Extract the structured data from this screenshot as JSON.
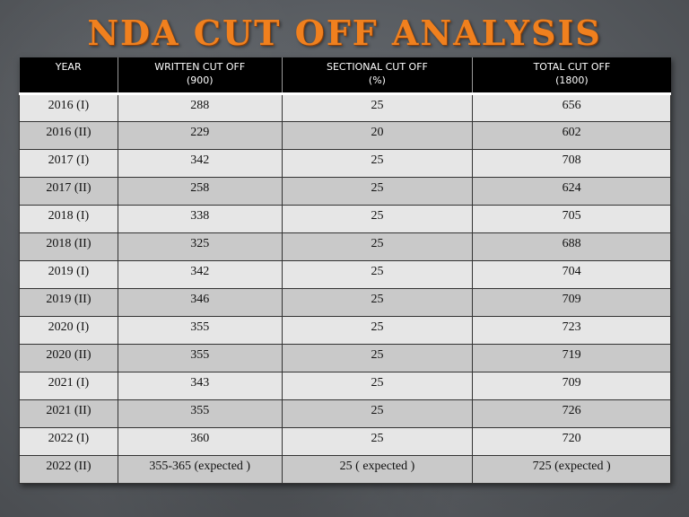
{
  "title": "NDA CUT OFF ANALYSIS",
  "colors": {
    "title": "#f0801e",
    "header_bg": "#000000",
    "row_light": "#e6e6e6",
    "row_dark": "#c9c9c9"
  },
  "table": {
    "headers": [
      {
        "label": "YEAR",
        "sub": ""
      },
      {
        "label": "WRITTEN CUT OFF",
        "sub": "(900)"
      },
      {
        "label": "SECTIONAL CUT OFF",
        "sub": "(%)"
      },
      {
        "label": "TOTAL CUT OFF",
        "sub": "(1800)"
      }
    ],
    "rows": [
      [
        "2016 (I)",
        "288",
        "25",
        "656"
      ],
      [
        "2016 (II)",
        "229",
        "20",
        "602"
      ],
      [
        "2017 (I)",
        "342",
        "25",
        "708"
      ],
      [
        "2017 (II)",
        "258",
        "25",
        "624"
      ],
      [
        "2018 (I)",
        "338",
        "25",
        "705"
      ],
      [
        "2018 (II)",
        "325",
        "25",
        "688"
      ],
      [
        "2019 (I)",
        "342",
        "25",
        "704"
      ],
      [
        "2019 (II)",
        "346",
        "25",
        "709"
      ],
      [
        "2020 (I)",
        "355",
        "25",
        "723"
      ],
      [
        "2020 (II)",
        "355",
        "25",
        "719"
      ],
      [
        "2021 (I)",
        "343",
        "25",
        "709"
      ],
      [
        "2021 (II)",
        "355",
        "25",
        "726"
      ],
      [
        "2022 (I)",
        "360",
        "25",
        "720"
      ],
      [
        "2022 (II)",
        "355-365 (expected )",
        "25 ( expected )",
        "725 (expected )"
      ]
    ]
  }
}
